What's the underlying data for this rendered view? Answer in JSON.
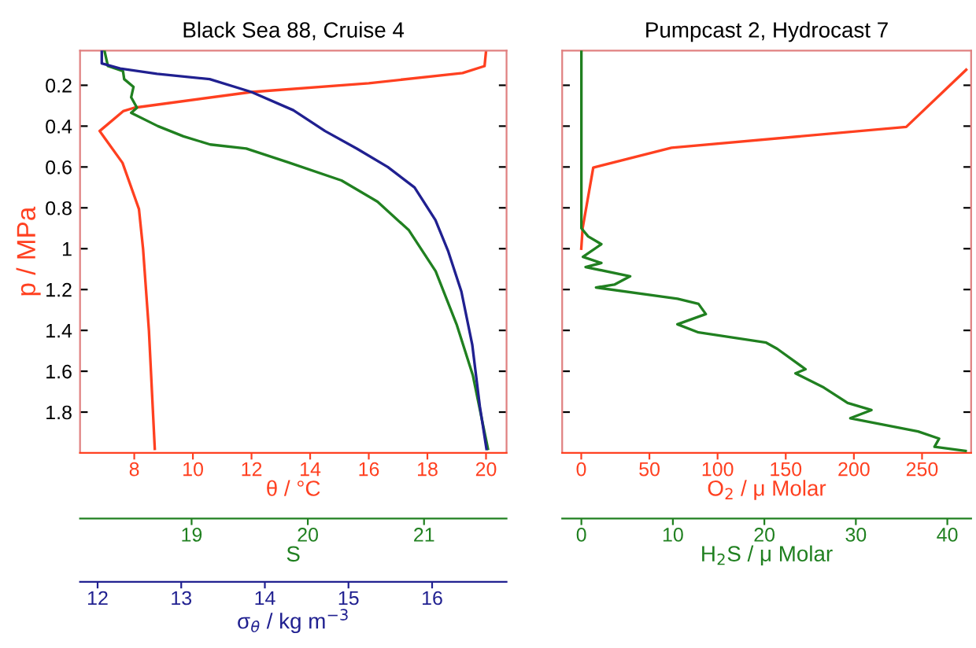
{
  "chart_data": [
    {
      "type": "line",
      "title": "Black Sea 88, Cruise 4",
      "ylabel": "p / MPa",
      "xlabel": "θ / °C",
      "x2label": "S",
      "ylim": [
        2.0,
        0.03
      ],
      "yticks": [
        0.2,
        0.4,
        0.6,
        0.8,
        1,
        1.2,
        1.4,
        1.6,
        1.8
      ],
      "xlim": [
        6.15,
        20.7
      ],
      "xticks": [
        8,
        10,
        12,
        14,
        16,
        18,
        20
      ],
      "x2lim": [
        18.04,
        21.71
      ],
      "x2ticks": [
        19,
        20,
        21
      ],
      "grid": false,
      "legend": false,
      "line_style": "solid",
      "marker": "none",
      "series": [
        {
          "color": "#ff4020",
          "x": [
            20.0,
            19.95,
            19.2,
            16,
            12,
            8,
            7.62,
            6.82,
            7.0,
            7.6,
            8.16,
            8.3,
            8.5,
            8.7
          ],
          "values": [
            0.034,
            0.106,
            0.14,
            0.19,
            0.233,
            0.31,
            0.327,
            0.424,
            0.46,
            0.58,
            0.806,
            1.0,
            1.4,
            1.98
          ]
        },
        {
          "axis": "x2",
          "color": "#208020",
          "x": [
            18.25,
            18.28,
            18.41,
            18.42,
            18.5,
            18.48,
            18.53,
            18.48,
            18.71,
            18.93,
            19.16,
            19.47,
            19.83,
            20.29,
            20.6,
            20.87,
            21.1,
            21.28,
            21.42,
            21.55
          ],
          "values": [
            0.03,
            0.106,
            0.131,
            0.17,
            0.208,
            0.259,
            0.31,
            0.335,
            0.4,
            0.45,
            0.49,
            0.51,
            0.577,
            0.666,
            0.77,
            0.91,
            1.11,
            1.37,
            1.62,
            1.98
          ]
        }
      ]
    },
    {
      "type": "line",
      "xlabel": "σ$_{θ}$ / kg m$^{−3}$",
      "tick_labels": "x",
      "ylim": [
        2.0,
        0.03
      ],
      "xlim": [
        11.79,
        16.89
      ],
      "xticks": [
        12,
        13,
        14,
        15,
        16
      ],
      "line_style": "solid",
      "marker": "none",
      "series": [
        {
          "color": "#202090",
          "x": [
            12.05,
            12.05,
            12.27,
            12.71,
            13.34,
            13.84,
            14.34,
            14.72,
            15.1,
            15.47,
            15.79,
            16.04,
            16.19,
            16.35,
            16.48,
            16.57,
            16.65
          ],
          "values": [
            0.03,
            0.093,
            0.118,
            0.144,
            0.17,
            0.233,
            0.322,
            0.424,
            0.51,
            0.6,
            0.7,
            0.86,
            1.01,
            1.21,
            1.47,
            1.77,
            1.98
          ]
        }
      ]
    },
    {
      "type": "line",
      "title": "Pumpcast 2, Hydrocast 7",
      "xlabel": "O$_{2}$ / μ Molar",
      "x2label": "H$_{2}$S / μ Molar",
      "tick_labels": "x",
      "ylim": [
        2.0,
        0.03
      ],
      "yticks": [
        0.2,
        0.4,
        0.6,
        0.8,
        1,
        1.2,
        1.4,
        1.6,
        1.8
      ],
      "xlim": [
        -14,
        286
      ],
      "xticks": [
        0,
        50,
        100,
        150,
        200,
        250
      ],
      "x2lim": [
        -2.1,
        42.6
      ],
      "x2ticks": [
        0,
        10,
        20,
        30,
        40
      ],
      "grid": false,
      "legend": false,
      "line_style": "solid",
      "marker": "none",
      "series": [
        {
          "color": "#ff4020",
          "x": [
            282.4,
            238.4,
            66.2,
            8.8,
            1,
            0
          ],
          "values": [
            0.124,
            0.404,
            0.506,
            0.603,
            0.9,
            1.0
          ]
        },
        {
          "axis": "x2",
          "color": "#208020",
          "x": [
            0,
            0,
            0.74,
            2.18,
            0.17,
            2.18,
            0.46,
            5.33,
            3.6,
            1.6,
            10.5,
            12.8,
            13.6,
            10.5,
            12.8,
            20.2,
            21.4,
            24.5,
            23.4,
            26.5,
            29.1,
            31.7,
            29.4,
            36.8,
            39.1,
            38.6,
            42.0
          ],
          "values": [
            0.034,
            0.9,
            0.94,
            0.978,
            1.04,
            1.07,
            1.09,
            1.135,
            1.176,
            1.19,
            1.245,
            1.27,
            1.32,
            1.37,
            1.41,
            1.46,
            1.49,
            1.59,
            1.61,
            1.68,
            1.755,
            1.79,
            1.83,
            1.895,
            1.93,
            1.97,
            1.99
          ]
        }
      ]
    }
  ]
}
